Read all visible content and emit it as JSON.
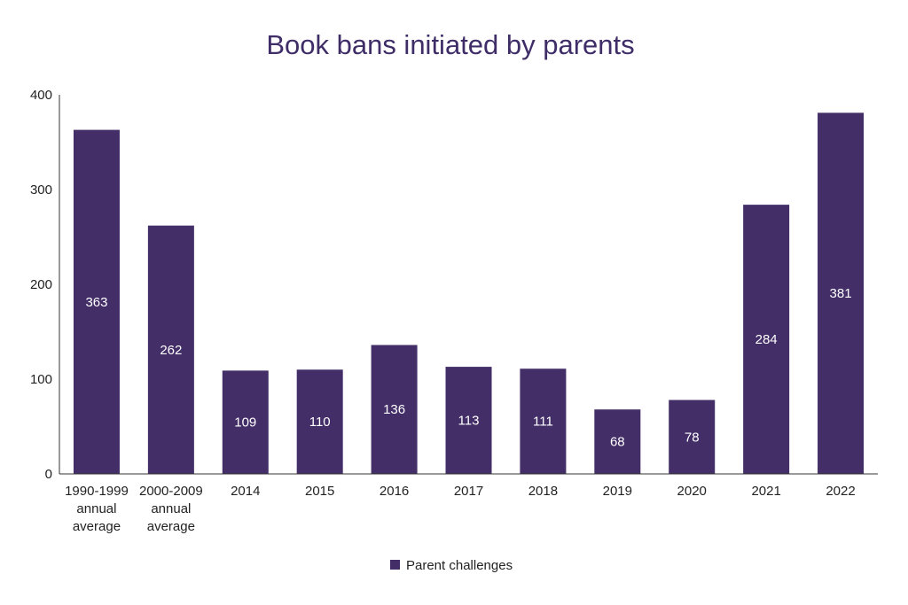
{
  "chart_data": {
    "type": "bar",
    "title": "Book bans initiated by parents",
    "xlabel": "",
    "ylabel": "",
    "ylim": [
      0,
      400
    ],
    "yticks": [
      0,
      100,
      200,
      300,
      400
    ],
    "grid": false,
    "legend_position": "bottom-center",
    "categories": [
      "1990-1999 annual average",
      "2000-2009 annual average",
      "2014",
      "2015",
      "2016",
      "2017",
      "2018",
      "2019",
      "2020",
      "2021",
      "2022"
    ],
    "category_lines": [
      [
        "1990-1999",
        "annual",
        "average"
      ],
      [
        "2000-2009",
        "annual",
        "average"
      ],
      [
        "2014"
      ],
      [
        "2015"
      ],
      [
        "2016"
      ],
      [
        "2017"
      ],
      [
        "2018"
      ],
      [
        "2019"
      ],
      [
        "2020"
      ],
      [
        "2021"
      ],
      [
        "2022"
      ]
    ],
    "series": [
      {
        "name": "Parent challenges",
        "color": "#432e68",
        "values": [
          363,
          262,
          109,
          110,
          136,
          113,
          111,
          68,
          78,
          284,
          381
        ]
      }
    ]
  }
}
